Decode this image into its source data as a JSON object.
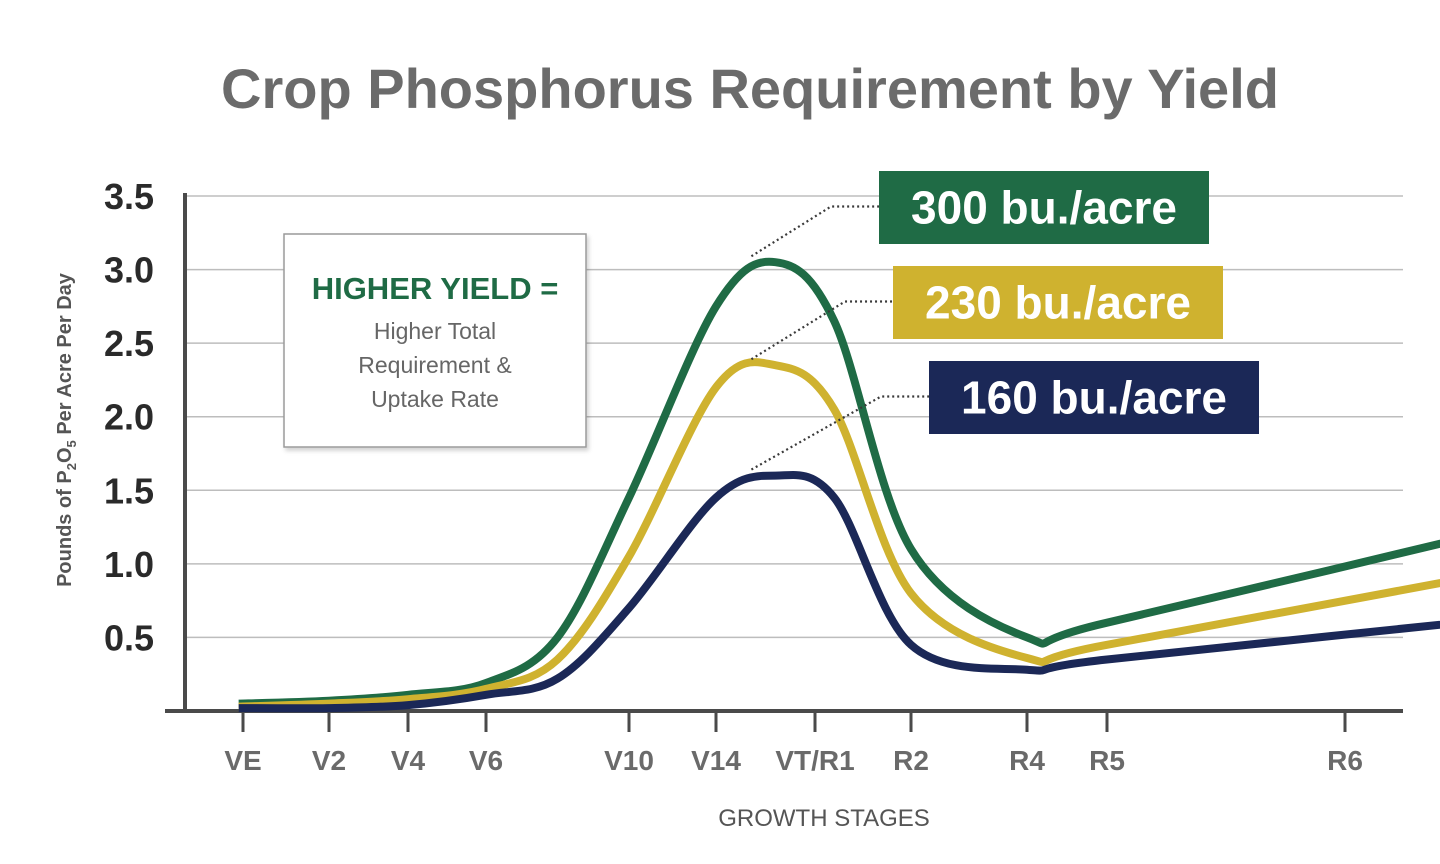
{
  "chart_data": {
    "type": "line",
    "title": "Crop Phosphorus Requirement by Yield",
    "ylabel_parts": [
      "Pounds of P",
      "2",
      "O",
      "5",
      " Per Acre Per Day"
    ],
    "xlabel": "GROWTH STAGES",
    "categories": [
      "VE",
      "V2",
      "V4",
      "V6",
      "V10",
      "V14",
      "VT/R1",
      "R2",
      "R4",
      "R5",
      "R6"
    ],
    "yticks": [
      "3.5",
      "3.0",
      "2.5",
      "2.0",
      "1.5",
      "1.0",
      "0.5"
    ],
    "ylim": [
      0,
      3.5
    ],
    "grid": true,
    "series": [
      {
        "name": "300 bu./acre",
        "color": "#1f6b45",
        "points": [
          [
            -0.05,
            0.05
          ],
          [
            1,
            0.07
          ],
          [
            2,
            0.11
          ],
          [
            3,
            0.19
          ],
          [
            3.5,
            0.5
          ],
          [
            4,
            1.45
          ],
          [
            5,
            2.75
          ],
          [
            5.6,
            3.05
          ],
          [
            6.2,
            2.65
          ],
          [
            7,
            1.1
          ],
          [
            8,
            0.5
          ],
          [
            9,
            0.6
          ],
          [
            10.9,
            1.33
          ]
        ]
      },
      {
        "name": "230 bu./acre",
        "color": "#cfb22f",
        "points": [
          [
            -0.05,
            0.03
          ],
          [
            1,
            0.05
          ],
          [
            2,
            0.08
          ],
          [
            3,
            0.15
          ],
          [
            3.5,
            0.35
          ],
          [
            4,
            1.05
          ],
          [
            5,
            2.2
          ],
          [
            5.6,
            2.35
          ],
          [
            6.2,
            2.05
          ],
          [
            7,
            0.8
          ],
          [
            8,
            0.36
          ],
          [
            9,
            0.45
          ],
          [
            10.9,
            1.02
          ]
        ]
      },
      {
        "name": "160 bu./acre",
        "color": "#1b2857",
        "points": [
          [
            -0.05,
            0.02
          ],
          [
            1,
            0.02
          ],
          [
            2,
            0.04
          ],
          [
            3,
            0.11
          ],
          [
            3.5,
            0.22
          ],
          [
            4,
            0.7
          ],
          [
            5,
            1.45
          ],
          [
            5.6,
            1.6
          ],
          [
            6.2,
            1.45
          ],
          [
            7,
            0.45
          ],
          [
            8,
            0.28
          ],
          [
            9,
            0.35
          ],
          [
            10.9,
            0.67
          ]
        ]
      }
    ],
    "annotation": {
      "heading": "HIGHER YIELD =",
      "lines": [
        "Higher Total",
        "Requirement &",
        "Uptake Rate"
      ],
      "heading_color": "#1f6b45"
    }
  }
}
